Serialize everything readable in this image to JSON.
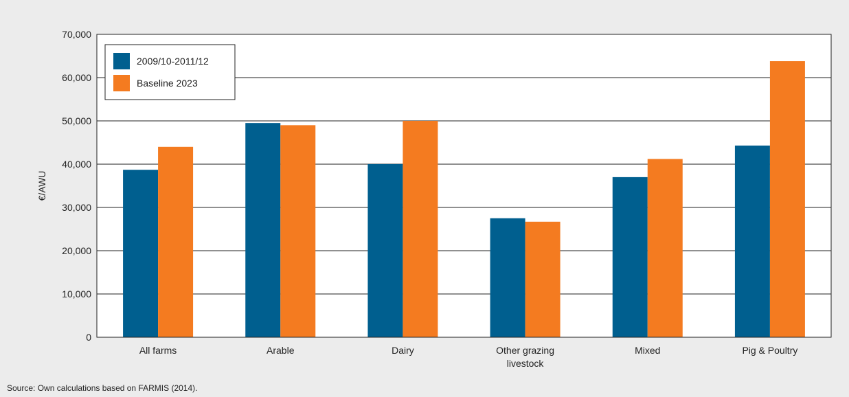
{
  "chart_data": {
    "type": "bar",
    "title": "",
    "xlabel": "",
    "ylabel": "€/AWU",
    "ylim": [
      0,
      70000
    ],
    "yticks": [
      0,
      10000,
      20000,
      30000,
      40000,
      50000,
      60000,
      70000
    ],
    "ytick_labels": [
      "0",
      "10,000",
      "20,000",
      "30,000",
      "40,000",
      "50,000",
      "60,000",
      "70,000"
    ],
    "categories": [
      [
        "All farms"
      ],
      [
        "Arable"
      ],
      [
        "Dairy"
      ],
      [
        "Other grazing",
        "livestock"
      ],
      [
        "Mixed"
      ],
      [
        "Pig & Poultry"
      ]
    ],
    "series": [
      {
        "name": "2009/10-2011/12",
        "color": "#005f8f",
        "values": [
          38700,
          49500,
          40000,
          27500,
          37000,
          44300
        ]
      },
      {
        "name": "Baseline 2023",
        "color": "#f47b20",
        "values": [
          44000,
          49000,
          50000,
          26700,
          41200,
          63800
        ]
      }
    ],
    "grid": true,
    "legend_position": "top-left"
  },
  "source": "Source: Own calculations based on FARMIS (2014)."
}
